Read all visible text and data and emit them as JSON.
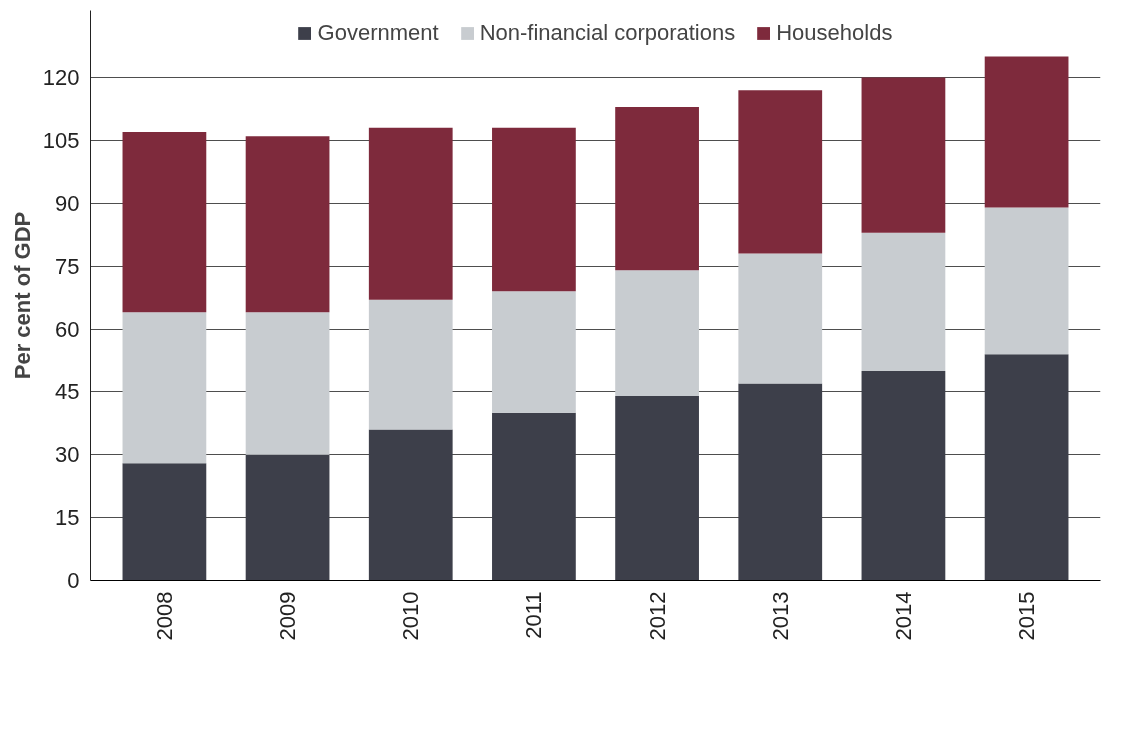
{
  "chart_data": {
    "type": "bar",
    "stacked": true,
    "ylabel": "Per cent of GDP",
    "categories": [
      "2008",
      "2009",
      "2010",
      "2011",
      "2012",
      "2013",
      "2014",
      "2015"
    ],
    "series": [
      {
        "name": "Government",
        "color": "#3d3f4a",
        "values": [
          28,
          30,
          36,
          40,
          44,
          47,
          50,
          54
        ]
      },
      {
        "name": "Non-financial corporations",
        "color": "#c8ccd0",
        "values": [
          36,
          34,
          31,
          29,
          30,
          31,
          33,
          35
        ]
      },
      {
        "name": "Households",
        "color": "#7e2a3c",
        "values": [
          43,
          42,
          41,
          39,
          39,
          39,
          37,
          36
        ]
      }
    ],
    "ylim": [
      0,
      136
    ],
    "yticks": [
      0,
      15,
      30,
      45,
      60,
      75,
      90,
      105,
      120
    ],
    "grid": "y",
    "legend": "top"
  }
}
